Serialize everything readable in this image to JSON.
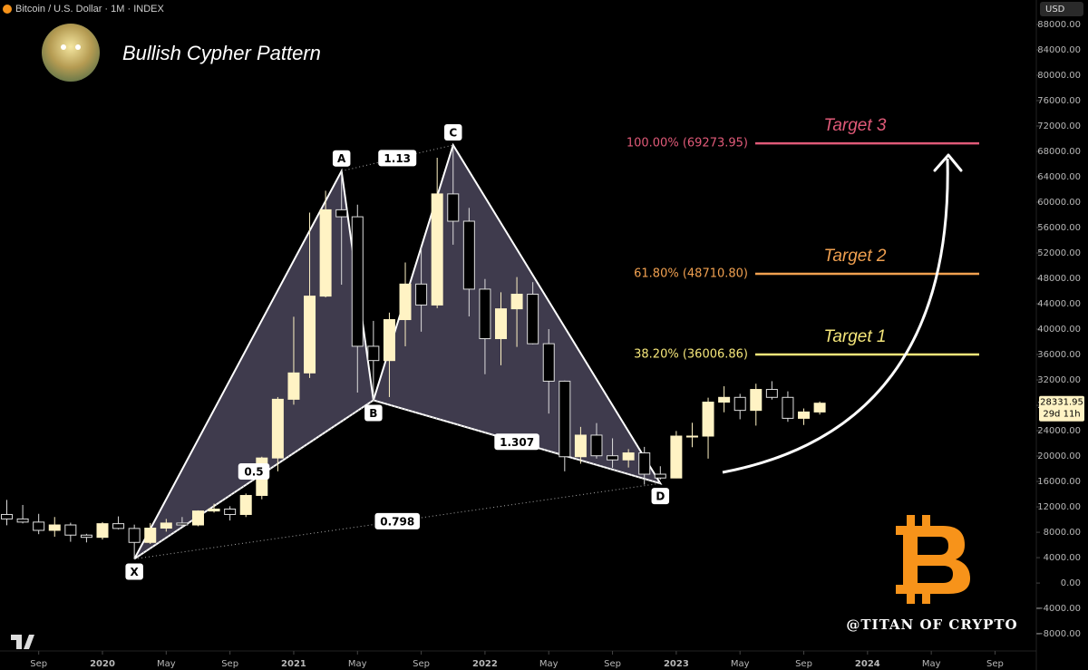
{
  "header": "Bitcoin / U.S. Dollar · 1M · INDEX",
  "currency": "USD",
  "watermark": "@TITAN OF CRYPTO",
  "chart_data": {
    "type": "candlestick",
    "title": "Bullish Cypher Pattern",
    "categories": [
      "2019-07",
      "2019-08",
      "2019-09",
      "2019-10",
      "2019-11",
      "2019-12",
      "2020-01",
      "2020-02",
      "2020-03",
      "2020-04",
      "2020-05",
      "2020-06",
      "2020-07",
      "2020-08",
      "2020-09",
      "2020-10",
      "2020-11",
      "2020-12",
      "2021-01",
      "2021-02",
      "2021-03",
      "2021-04",
      "2021-05",
      "2021-06",
      "2021-07",
      "2021-08",
      "2021-09",
      "2021-10",
      "2021-11",
      "2021-12",
      "2022-01",
      "2022-02",
      "2022-03",
      "2022-04",
      "2022-05",
      "2022-06",
      "2022-07",
      "2022-08",
      "2022-09",
      "2022-10",
      "2022-11",
      "2022-12",
      "2023-01",
      "2023-02",
      "2023-03",
      "2023-04",
      "2023-05",
      "2023-06",
      "2023-07",
      "2023-08",
      "2023-09",
      "2023-10"
    ],
    "open": [
      10800,
      10100,
      9600,
      8300,
      9150,
      7550,
      7200,
      9350,
      8600,
      6400,
      8650,
      9450,
      9150,
      11350,
      11650,
      10800,
      13800,
      19700,
      28950,
      33100,
      45200,
      58800,
      57700,
      37300,
      35050,
      41500,
      47100,
      43800,
      61300,
      57000,
      46300,
      38500,
      43200,
      45500,
      37700,
      31800,
      19900,
      23300,
      20050,
      19400,
      20500,
      17150,
      16550,
      23150,
      23150,
      28500,
      29250,
      27200,
      30500,
      29250,
      25950,
      26950
    ],
    "high": [
      13100,
      12300,
      10900,
      10400,
      9500,
      7750,
      9600,
      10500,
      9200,
      9450,
      10100,
      10400,
      11450,
      12500,
      12100,
      14100,
      19900,
      29300,
      41950,
      58350,
      61800,
      64900,
      59600,
      41300,
      42600,
      50500,
      52900,
      67000,
      69000,
      59100,
      47900,
      45800,
      48200,
      47400,
      40000,
      31900,
      24600,
      25200,
      22800,
      21100,
      21450,
      18400,
      23950,
      25250,
      29200,
      31000,
      29800,
      31400,
      31800,
      30200,
      27500,
      28600
    ],
    "low": [
      9100,
      9400,
      7700,
      7300,
      6500,
      6400,
      6850,
      8450,
      3800,
      6150,
      8100,
      8900,
      8950,
      11100,
      9850,
      10400,
      13200,
      17600,
      28100,
      32300,
      45000,
      47000,
      30000,
      28800,
      29300,
      37300,
      39600,
      43300,
      53300,
      42000,
      32900,
      34300,
      37200,
      37600,
      26700,
      17600,
      18800,
      19600,
      18150,
      18200,
      15500,
      16300,
      16500,
      21400,
      19600,
      26900,
      25800,
      24800,
      28900,
      25400,
      24900,
      26550
    ],
    "close": [
      10100,
      9600,
      8300,
      9150,
      7550,
      7200,
      9350,
      8600,
      6400,
      8650,
      9450,
      9150,
      11350,
      11650,
      10800,
      13800,
      19700,
      28950,
      33100,
      45200,
      58800,
      57700,
      37300,
      35050,
      41500,
      47100,
      43800,
      61300,
      57000,
      46300,
      38500,
      43200,
      45500,
      37700,
      31800,
      19900,
      23300,
      20050,
      19400,
      20500,
      17150,
      16550,
      23150,
      23150,
      28500,
      29250,
      27200,
      30500,
      29250,
      25950,
      26950,
      28331.95
    ],
    "up_color": "#fff3c4",
    "down_color": "#000000",
    "ylim": [
      -10700,
      91850
    ],
    "yticks": [
      {
        "value": -8000,
        "label": "−8000.00"
      },
      {
        "value": -4000,
        "label": "−4000.00"
      },
      {
        "value": 0,
        "label": "0.00"
      },
      {
        "value": 4000,
        "label": "4000.00"
      },
      {
        "value": 8000,
        "label": "8000.00"
      },
      {
        "value": 12000,
        "label": "12000.00"
      },
      {
        "value": 16000,
        "label": "16000.00"
      },
      {
        "value": 20000,
        "label": "20000.00"
      },
      {
        "value": 24000,
        "label": "24000.00"
      },
      {
        "value": 28000,
        "label": "28000.00"
      },
      {
        "value": 32000,
        "label": "32000.00"
      },
      {
        "value": 36000,
        "label": "36000.00"
      },
      {
        "value": 40000,
        "label": "40000.00"
      },
      {
        "value": 44000,
        "label": "44000.00"
      },
      {
        "value": 48000,
        "label": "48000.00"
      },
      {
        "value": 52000,
        "label": "52000.00"
      },
      {
        "value": 56000,
        "label": "56000.00"
      },
      {
        "value": 60000,
        "label": "60000.00"
      },
      {
        "value": 64000,
        "label": "64000.00"
      },
      {
        "value": 68000,
        "label": "68000.00"
      },
      {
        "value": 72000,
        "label": "72000.00"
      },
      {
        "value": 76000,
        "label": "76000.00"
      },
      {
        "value": 80000,
        "label": "80000.00"
      },
      {
        "value": 84000,
        "label": "84000.00"
      },
      {
        "value": 88000,
        "label": "88000.00"
      }
    ],
    "xticks": [
      {
        "value": "2019-09",
        "label": "Sep"
      },
      {
        "value": "2020-01",
        "label": "2020"
      },
      {
        "value": "2020-05",
        "label": "May"
      },
      {
        "value": "2020-09",
        "label": "Sep"
      },
      {
        "value": "2021-01",
        "label": "2021"
      },
      {
        "value": "2021-05",
        "label": "May"
      },
      {
        "value": "2021-09",
        "label": "Sep"
      },
      {
        "value": "2022-01",
        "label": "2022"
      },
      {
        "value": "2022-05",
        "label": "May"
      },
      {
        "value": "2022-09",
        "label": "Sep"
      },
      {
        "value": "2023-01",
        "label": "2023"
      },
      {
        "value": "2023-05",
        "label": "May"
      },
      {
        "value": "2023-09",
        "label": "Sep"
      },
      {
        "value": "2024-01",
        "label": "2024"
      },
      {
        "value": "2024-05",
        "label": "May"
      },
      {
        "value": "2024-09",
        "label": "Sep"
      }
    ],
    "last_price": {
      "value": 28331.95,
      "label": "28331.95",
      "countdown": "29d 11h"
    },
    "pattern": {
      "color": "#8c82aa",
      "points": [
        {
          "name": "X",
          "x": "2020-03",
          "value": 3800
        },
        {
          "name": "A",
          "x": "2021-04",
          "value": 64900
        },
        {
          "name": "B",
          "x": "2021-06",
          "value": 28800
        },
        {
          "name": "C",
          "x": "2021-11",
          "value": 69000
        },
        {
          "name": "D",
          "x": "2022-12",
          "value": 15700
        }
      ],
      "ratios": [
        {
          "from": "X",
          "to": "B",
          "label": "0.5"
        },
        {
          "from": "A",
          "to": "C",
          "label": "1.13"
        },
        {
          "from": "B",
          "to": "D",
          "label": "1.307"
        },
        {
          "from": "X",
          "to": "D",
          "label": "0.798"
        }
      ]
    },
    "targets": [
      {
        "name": "Target 3",
        "level": "100.00% (69273.95)",
        "value": 69273.95,
        "color": "#e05a78"
      },
      {
        "name": "Target 2",
        "level": "61.80% (48710.80)",
        "value": 48710.8,
        "color": "#f0a050"
      },
      {
        "name": "Target 1",
        "level": "38.20% (36006.86)",
        "value": 36006.86,
        "color": "#f5e67a"
      }
    ]
  }
}
